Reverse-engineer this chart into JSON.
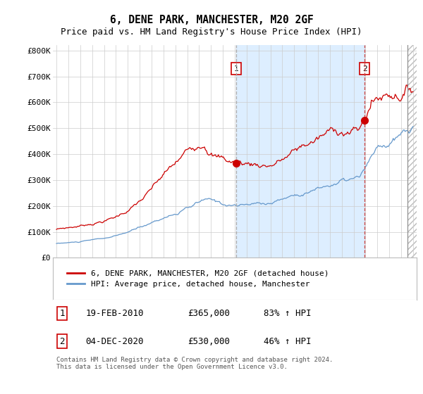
{
  "title": "6, DENE PARK, MANCHESTER, M20 2GF",
  "subtitle": "Price paid vs. HM Land Registry's House Price Index (HPI)",
  "title_fontsize": 10.5,
  "subtitle_fontsize": 9,
  "ylabel_ticks": [
    "£0",
    "£100K",
    "£200K",
    "£300K",
    "£400K",
    "£500K",
    "£600K",
    "£700K",
    "£800K"
  ],
  "ytick_values": [
    0,
    100000,
    200000,
    300000,
    400000,
    500000,
    600000,
    700000,
    800000
  ],
  "ylim": [
    0,
    820000
  ],
  "xlim_start": 1994.7,
  "xlim_end": 2025.3,
  "xticks": [
    1995,
    1996,
    1997,
    1998,
    1999,
    2000,
    2001,
    2002,
    2003,
    2004,
    2005,
    2006,
    2007,
    2008,
    2009,
    2010,
    2011,
    2012,
    2013,
    2014,
    2015,
    2016,
    2017,
    2018,
    2019,
    2020,
    2021,
    2022,
    2023,
    2024,
    2025
  ],
  "red_color": "#cc0000",
  "blue_color": "#6699cc",
  "marker1_x": 2010.12,
  "marker1_y": 365000,
  "marker2_x": 2020.92,
  "marker2_y": 530000,
  "vline1_x": 2010.12,
  "vline2_x": 2020.92,
  "shade_start": 2010.12,
  "shade_end": 2020.92,
  "hatch_start": 2024.5,
  "hatch_end": 2025.3,
  "legend_label_red": "6, DENE PARK, MANCHESTER, M20 2GF (detached house)",
  "legend_label_blue": "HPI: Average price, detached house, Manchester",
  "table_rows": [
    {
      "num": "1",
      "date": "19-FEB-2010",
      "price": "£365,000",
      "hpi": "83% ↑ HPI"
    },
    {
      "num": "2",
      "date": "04-DEC-2020",
      "price": "£530,000",
      "hpi": "46% ↑ HPI"
    }
  ],
  "footer": "Contains HM Land Registry data © Crown copyright and database right 2024.\nThis data is licensed under the Open Government Licence v3.0.",
  "plot_bg_color": "#ffffff",
  "grid_color": "#cccccc",
  "shade_color": "#ddeeff",
  "hatch_color": "#dddddd"
}
